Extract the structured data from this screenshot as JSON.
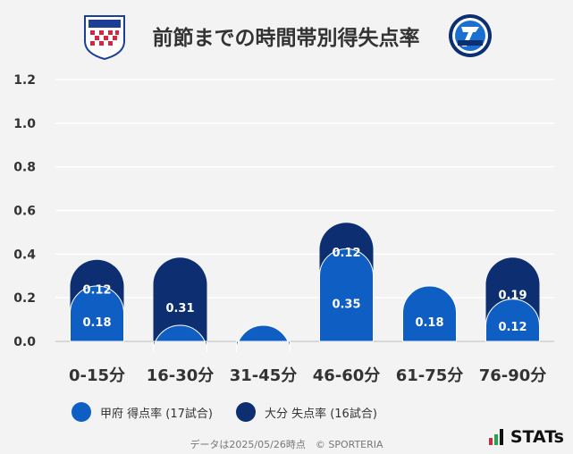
{
  "title": "前節までの時間帯別得失点率",
  "colors": {
    "home": "#0f5ec4",
    "away": "#0d2f72",
    "grid": "#ffffff",
    "text": "#333333"
  },
  "home_crest_text": "VENTFORET KOFU",
  "away_crest_text": "TRINITA",
  "chart_data": {
    "type": "bar",
    "categories": [
      "0-15分",
      "16-30分",
      "31-45分",
      "46-60分",
      "61-75分",
      "76-90分"
    ],
    "series": [
      {
        "name": "甲府 得点率 (17試合)",
        "values": [
          0.18,
          0.0,
          0.0,
          0.35,
          0.18,
          0.12
        ]
      },
      {
        "name": "大分 失点率 (16試合)",
        "values": [
          0.12,
          0.31,
          0.0,
          0.12,
          0.0,
          0.19
        ]
      }
    ],
    "stacked": true,
    "ylim": [
      0,
      1.2
    ],
    "yticks": [
      "0.0",
      "0.2",
      "0.4",
      "0.6",
      "0.8",
      "1.0",
      "1.2"
    ],
    "grid": true,
    "legend": "bottom"
  },
  "legend": [
    {
      "label": "甲府 得点率 (17試合)",
      "color": "#0f5ec4"
    },
    {
      "label": "大分 失点率 (16試合)",
      "color": "#0d2f72"
    }
  ],
  "footer": "データは2025/05/26時点　© SPORTERIA",
  "brand": "STATs"
}
